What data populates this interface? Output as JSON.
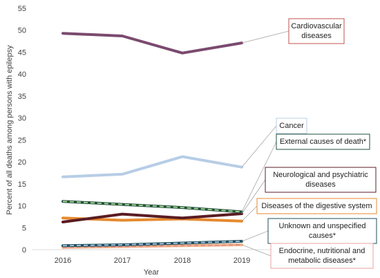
{
  "chart_data": {
    "type": "line",
    "xlabel": "Year",
    "ylabel": "Percent of all deaths among persons with epilepsy",
    "categories": [
      "2016",
      "2017",
      "2018",
      "2019"
    ],
    "ylim": [
      0,
      55
    ],
    "ytick_step": 5,
    "grid": false,
    "series": [
      {
        "name": "Cardiovascular diseases",
        "values": [
          49.3,
          48.7,
          44.8,
          47.1
        ],
        "color": "#7b4a6e",
        "dashed": false,
        "label_lines": [
          "Cardiovascular",
          "diseases"
        ],
        "border": "#c0504d"
      },
      {
        "name": "Cancer",
        "values": [
          16.6,
          17.2,
          21.2,
          18.8
        ],
        "color": "#b7cde6",
        "dashed": false,
        "label_lines": [
          "Cancer"
        ],
        "border": "#b7cde6"
      },
      {
        "name": "External causes of death*",
        "values": [
          11.0,
          10.3,
          9.6,
          8.6
        ],
        "color": "#1e4f3c",
        "dashed": true,
        "dash_color": "#a9d18e",
        "label_lines": [
          "External causes of death*"
        ],
        "border": "#1e4f3c"
      },
      {
        "name": "Neurological and psychiatric diseases",
        "values": [
          6.3,
          8.1,
          7.2,
          8.2
        ],
        "color": "#5a1c23",
        "dashed": false,
        "label_lines": [
          "Neurological and psychiatric",
          "diseases"
        ],
        "border": "#5a1c23"
      },
      {
        "name": "Diseases of the digestive system",
        "values": [
          7.2,
          6.7,
          7.0,
          6.5
        ],
        "color": "#e58a2f",
        "dashed": false,
        "label_lines": [
          "Diseases of the digestive system"
        ],
        "border": "#e58a2f"
      },
      {
        "name": "Unknown and unspecified causes*",
        "values": [
          0.9,
          1.1,
          1.5,
          1.9
        ],
        "color": "#1e4f5c",
        "dashed": true,
        "dash_color": "#a6bedb",
        "label_lines": [
          "Unknown and unspecified",
          "causes*"
        ],
        "border": "#1e4f5c"
      },
      {
        "name": "Endocrine, nutritional and metabolic diseases*",
        "values": [
          0.5,
          0.7,
          0.9,
          1.1
        ],
        "color": "#f4b183",
        "dashed": true,
        "dash_color": "#d9918f",
        "label_lines": [
          "Endocrine, nutritional and",
          "metabolic diseases*"
        ],
        "border": "#e8a0a0"
      }
    ]
  }
}
